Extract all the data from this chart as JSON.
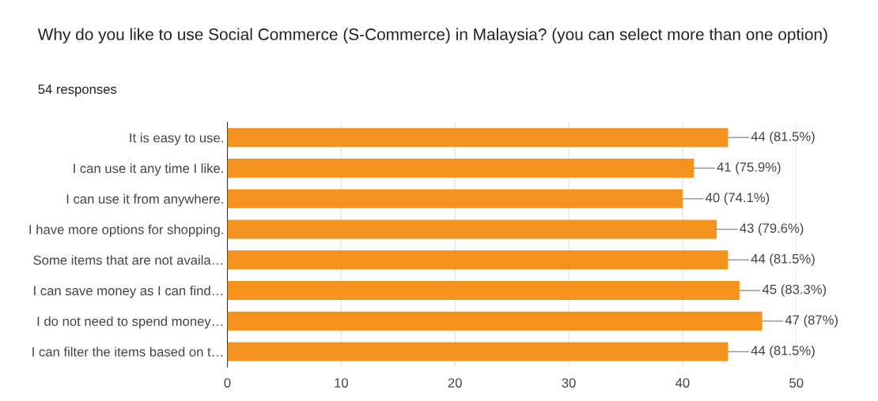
{
  "chart_data": {
    "type": "bar",
    "orientation": "horizontal",
    "title": "Why do you like to use Social Commerce (S-Commerce) in Malaysia? (you can select more than one option)",
    "subtitle": "54 responses",
    "categories": [
      "It is easy to use.",
      "I can use it any time I like.",
      "I can use it from anywhere.",
      "I have more options for shopping.",
      "Some items that are not availa…",
      "I can save money as I can find…",
      "I do not need to spend money…",
      "I can filter the items based on t…"
    ],
    "values": [
      44,
      41,
      40,
      43,
      44,
      45,
      47,
      44
    ],
    "value_labels": [
      "44 (81.5%)",
      "41 (75.9%)",
      "40 (74.1%)",
      "43 (79.6%)",
      "44 (81.5%)",
      "45 (83.3%)",
      "47 (87%)",
      "44 (81.5%)"
    ],
    "color": "#f4921e",
    "xlim": [
      0,
      50
    ],
    "xticks": [
      0,
      10,
      20,
      30,
      40,
      50
    ],
    "grid": "x",
    "legend": false
  }
}
